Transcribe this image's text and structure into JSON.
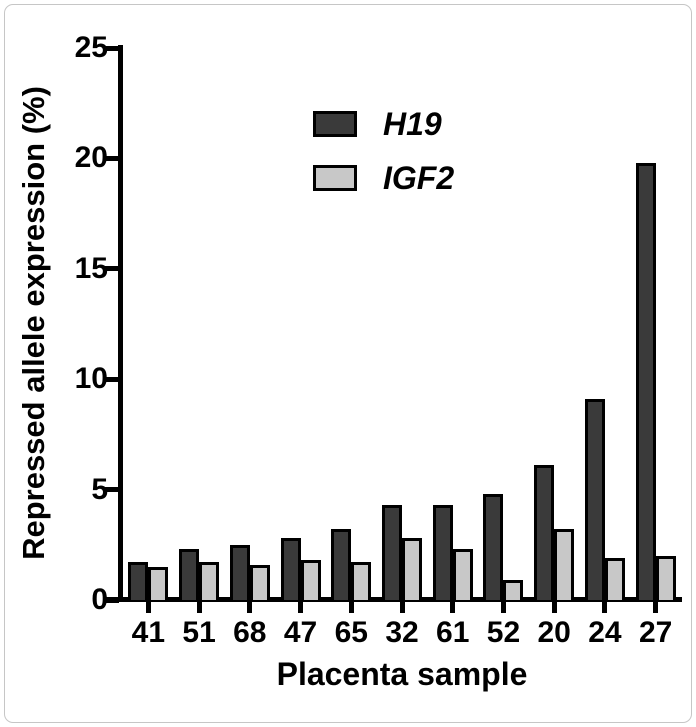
{
  "chart_data": {
    "type": "bar",
    "title": "",
    "xlabel": "Placenta sample",
    "ylabel": "Repressed allele expression (%)",
    "ylim": [
      0,
      25
    ],
    "yticks": [
      0,
      5,
      10,
      15,
      20,
      25
    ],
    "grid": false,
    "legend_position": "upper-center-inside",
    "axis_color": "#000000",
    "bar_border_color": "#000000",
    "categories": [
      "41",
      "51",
      "68",
      "47",
      "65",
      "32",
      "61",
      "52",
      "20",
      "24",
      "27"
    ],
    "series": [
      {
        "name": "H19",
        "color": "#3a3a3a",
        "values": [
          1.7,
          2.3,
          2.5,
          2.8,
          3.2,
          4.3,
          4.3,
          4.8,
          6.1,
          9.1,
          19.8
        ]
      },
      {
        "name": "IGF2",
        "color": "#c8c8c8",
        "values": [
          1.5,
          1.7,
          1.6,
          1.8,
          1.7,
          2.8,
          2.3,
          0.9,
          3.2,
          1.9,
          2.0
        ]
      }
    ]
  }
}
